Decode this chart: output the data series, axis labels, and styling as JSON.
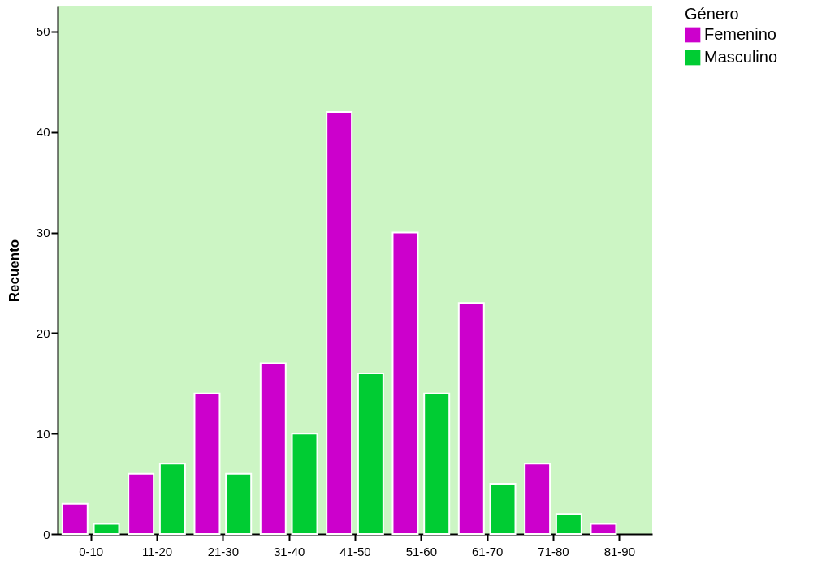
{
  "chart_data": {
    "type": "bar",
    "ylabel": "Recuento",
    "legend_title": "Género",
    "categories": [
      "0-10",
      "11-20",
      "21-30",
      "31-40",
      "41-50",
      "51-60",
      "61-70",
      "71-80",
      "81-90"
    ],
    "series": [
      {
        "name": "Femenino",
        "color": "#cc00cc",
        "values": [
          3,
          6,
          14,
          17,
          42,
          30,
          23,
          7,
          1
        ]
      },
      {
        "name": "Masculino",
        "color": "#00cc33",
        "values": [
          1,
          7,
          6,
          10,
          16,
          14,
          5,
          2,
          null
        ]
      }
    ],
    "ylim": [
      0,
      52.5
    ],
    "yticks": [
      0,
      10,
      20,
      30,
      40,
      50
    ],
    "legend": "top right"
  }
}
